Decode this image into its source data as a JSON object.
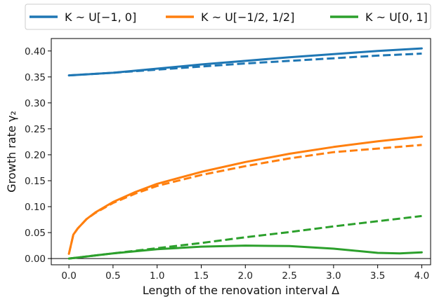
{
  "chart_data": {
    "type": "line",
    "xlabel": "Length of the renovation interval Δ",
    "ylabel": "Growth rate γ₂",
    "xlim": [
      -0.2,
      4.1
    ],
    "ylim": [
      -0.012,
      0.424
    ],
    "xticks": [
      0.0,
      0.5,
      1.0,
      1.5,
      2.0,
      2.5,
      3.0,
      3.5,
      4.0
    ],
    "yticks": [
      0.0,
      0.05,
      0.1,
      0.15,
      0.2,
      0.25,
      0.3,
      0.35,
      0.4
    ],
    "x_tick_labels": [
      "0.0",
      "0.5",
      "1.0",
      "1.5",
      "2.0",
      "2.5",
      "3.0",
      "3.5",
      "4.0"
    ],
    "y_tick_labels": [
      "0.00",
      "0.05",
      "0.10",
      "0.15",
      "0.20",
      "0.25",
      "0.30",
      "0.35",
      "0.40"
    ],
    "legend_position": "top",
    "zero_line": true,
    "grid": false,
    "series": [
      {
        "name": "K ~ U[−1, 0]",
        "color": "#1f77b4",
        "x": [
          0,
          0.5,
          1.0,
          1.5,
          2.0,
          2.5,
          3.0,
          3.5,
          4.0
        ],
        "solid": [
          0.353,
          0.358,
          0.366,
          0.374,
          0.381,
          0.388,
          0.394,
          0.4,
          0.405
        ],
        "dashed": [
          0.353,
          0.358,
          0.364,
          0.37,
          0.376,
          0.381,
          0.386,
          0.391,
          0.395
        ]
      },
      {
        "name": "K ~ U[−1/2, 1/2]",
        "color": "#ff7f0e",
        "x": [
          0,
          0.05,
          0.1,
          0.2,
          0.3,
          0.5,
          0.75,
          1.0,
          1.5,
          2.0,
          2.5,
          3.0,
          3.5,
          4.0
        ],
        "solid": [
          0.009,
          0.046,
          0.058,
          0.076,
          0.089,
          0.109,
          0.128,
          0.144,
          0.167,
          0.186,
          0.202,
          0.215,
          0.226,
          0.235
        ],
        "dashed": [
          0.009,
          0.046,
          0.058,
          0.076,
          0.088,
          0.107,
          0.125,
          0.14,
          0.161,
          0.178,
          0.193,
          0.205,
          0.212,
          0.219
        ]
      },
      {
        "name": "K ~ U[0, 1]",
        "color": "#2ca02c",
        "x": [
          0,
          0.5,
          1.0,
          1.5,
          2.0,
          2.5,
          3.0,
          3.5,
          3.75,
          4.0
        ],
        "solid": [
          0.0,
          0.01,
          0.018,
          0.023,
          0.025,
          0.024,
          0.019,
          0.011,
          0.01,
          0.012
        ],
        "dashed": [
          0.0,
          0.01,
          0.02,
          0.03,
          0.041,
          0.051,
          0.062,
          0.072,
          0.077,
          0.082
        ]
      }
    ]
  }
}
